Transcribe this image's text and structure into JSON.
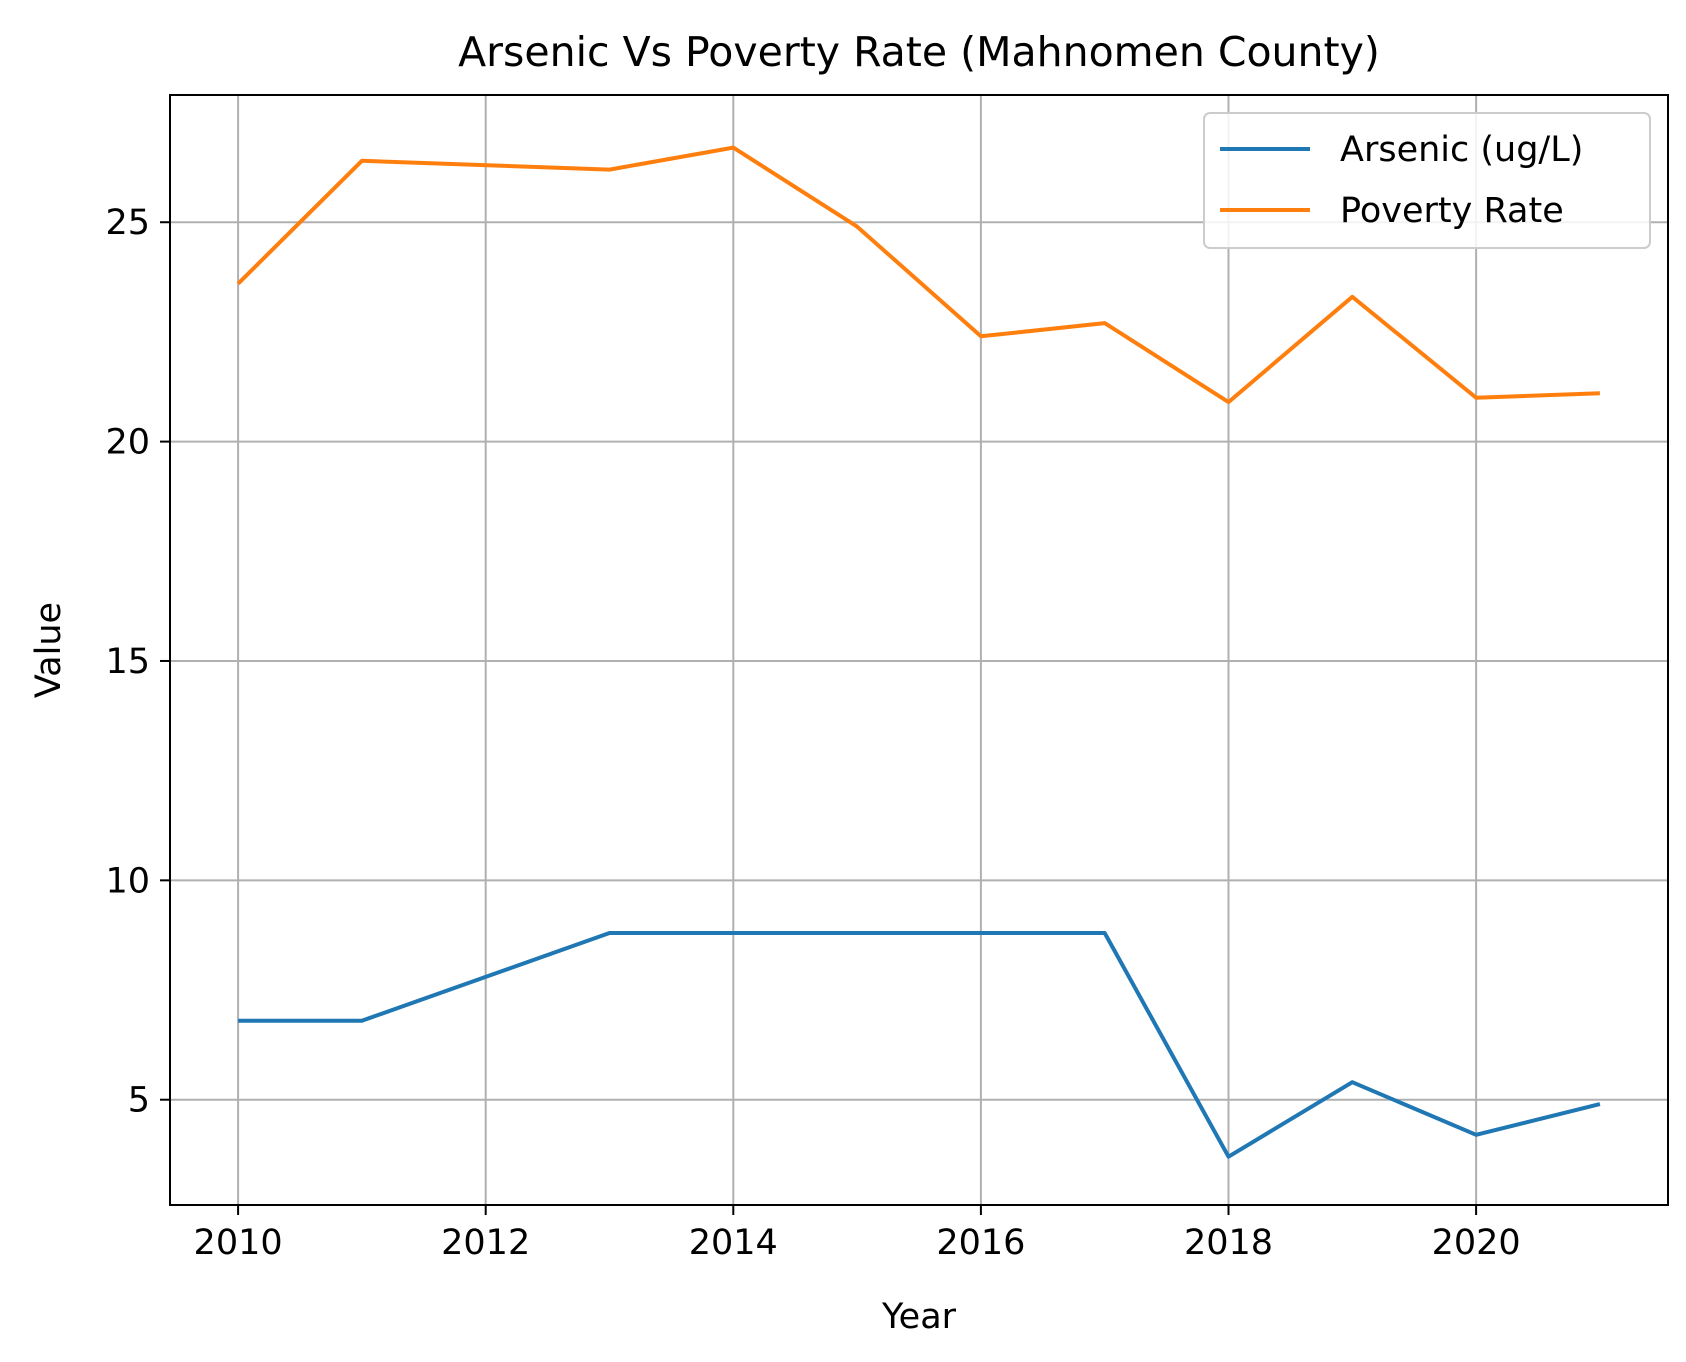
{
  "chart_data": {
    "type": "line",
    "title": "Arsenic Vs Poverty Rate (Mahnomen County)",
    "xlabel": "Year",
    "ylabel": "Value",
    "xlim": [
      2009.45,
      2021.55
    ],
    "ylim": [
      2.6,
      27.9
    ],
    "xticks": [
      2010,
      2012,
      2014,
      2016,
      2018,
      2020
    ],
    "yticks": [
      5,
      10,
      15,
      20,
      25
    ],
    "grid": true,
    "legend_position": "top-right",
    "x": [
      2010,
      2011,
      2012,
      2013,
      2014,
      2015,
      2016,
      2017,
      2018,
      2019,
      2020,
      2021
    ],
    "series": [
      {
        "name": "Arsenic (ug/L)",
        "color": "#1f77b4",
        "values": [
          6.8,
          6.8,
          7.8,
          8.8,
          8.8,
          8.8,
          8.8,
          8.8,
          3.7,
          5.4,
          4.2,
          4.9
        ]
      },
      {
        "name": "Poverty Rate",
        "color": "#ff7f0e",
        "values": [
          23.6,
          26.4,
          null,
          26.2,
          26.7,
          24.9,
          22.4,
          22.7,
          20.9,
          23.3,
          21.0,
          21.1
        ]
      }
    ]
  }
}
